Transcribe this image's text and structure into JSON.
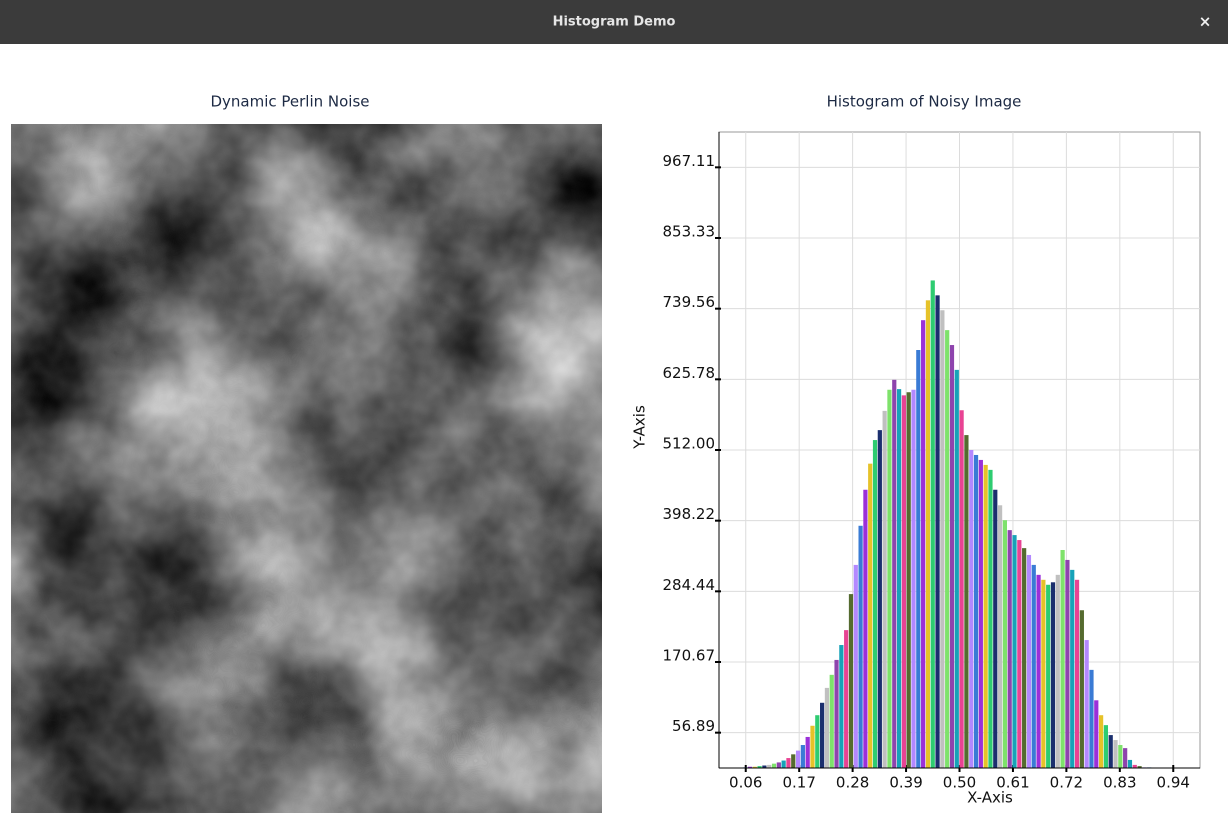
{
  "window": {
    "title": "Histogram Demo",
    "close": "×"
  },
  "image_panel": {
    "title": "Dynamic Perlin Noise"
  },
  "chart_data": {
    "type": "histogram",
    "title": "Histogram of Noisy Image",
    "xlabel": "X-Axis",
    "ylabel": "Y-Axis",
    "bins": [
      0.05,
      0.06,
      0.07,
      0.08,
      0.09,
      0.1,
      0.11,
      0.12,
      0.13,
      0.14,
      0.15,
      0.16,
      0.17,
      0.18,
      0.19,
      0.2,
      0.21,
      0.22,
      0.23,
      0.24,
      0.25,
      0.26,
      0.27,
      0.28,
      0.29,
      0.3,
      0.31,
      0.32,
      0.33,
      0.34,
      0.35,
      0.36,
      0.37,
      0.38,
      0.39,
      0.4,
      0.41,
      0.42,
      0.43,
      0.44,
      0.45,
      0.46,
      0.47,
      0.48,
      0.49,
      0.5,
      0.51,
      0.52,
      0.53,
      0.54,
      0.55,
      0.56,
      0.57,
      0.58,
      0.59,
      0.6,
      0.61,
      0.62,
      0.63,
      0.64,
      0.65,
      0.66,
      0.67,
      0.68,
      0.69,
      0.7,
      0.71,
      0.72,
      0.73,
      0.74,
      0.75,
      0.76,
      0.77,
      0.78,
      0.79,
      0.8,
      0.81,
      0.82,
      0.83,
      0.84,
      0.85,
      0.86,
      0.87,
      0.88,
      0.89,
      0.9
    ],
    "values": [
      1,
      2,
      2,
      3,
      4,
      5,
      7,
      9,
      12,
      16,
      22,
      28,
      37,
      50,
      68,
      85,
      105,
      129,
      150,
      174,
      198,
      222,
      280,
      327,
      390,
      448,
      490,
      528,
      544,
      575,
      609,
      625,
      610,
      600,
      605,
      609,
      673,
      721,
      753,
      785,
      761,
      737,
      705,
      681,
      641,
      576,
      536,
      512,
      504,
      496,
      488,
      480,
      448,
      423,
      399,
      383,
      375,
      367,
      354,
      343,
      327,
      311,
      303,
      295,
      299,
      311,
      351,
      335,
      319,
      303,
      254,
      206,
      158,
      109,
      85,
      69,
      53,
      45,
      37,
      32,
      13,
      5,
      3,
      1,
      1
    ],
    "colors": [
      "#3a7bd5",
      "#9b30d9",
      "#e6c229",
      "#2ecc71",
      "#1b2f6e",
      "#c0c0c0",
      "#7ee26b",
      "#8e44ad",
      "#17a2b8",
      "#e84393",
      "#556b2f",
      "#b388ff"
    ],
    "xlim": [
      0,
      1
    ],
    "ylim": [
      0,
      1024
    ],
    "xticks": [
      {
        "value": 0.0556,
        "label": "0.06"
      },
      {
        "value": 0.1667,
        "label": "0.17"
      },
      {
        "value": 0.2778,
        "label": "0.28"
      },
      {
        "value": 0.3889,
        "label": "0.39"
      },
      {
        "value": 0.5,
        "label": "0.50"
      },
      {
        "value": 0.6111,
        "label": "0.61"
      },
      {
        "value": 0.7222,
        "label": "0.72"
      },
      {
        "value": 0.8333,
        "label": "0.83"
      },
      {
        "value": 0.9444,
        "label": "0.94"
      }
    ],
    "yticks": [
      56.89,
      170.67,
      284.44,
      398.22,
      {
        "value": 512,
        "label": "512.00"
      },
      625.78,
      739.56,
      853.33,
      967.11
    ],
    "grid": true
  }
}
